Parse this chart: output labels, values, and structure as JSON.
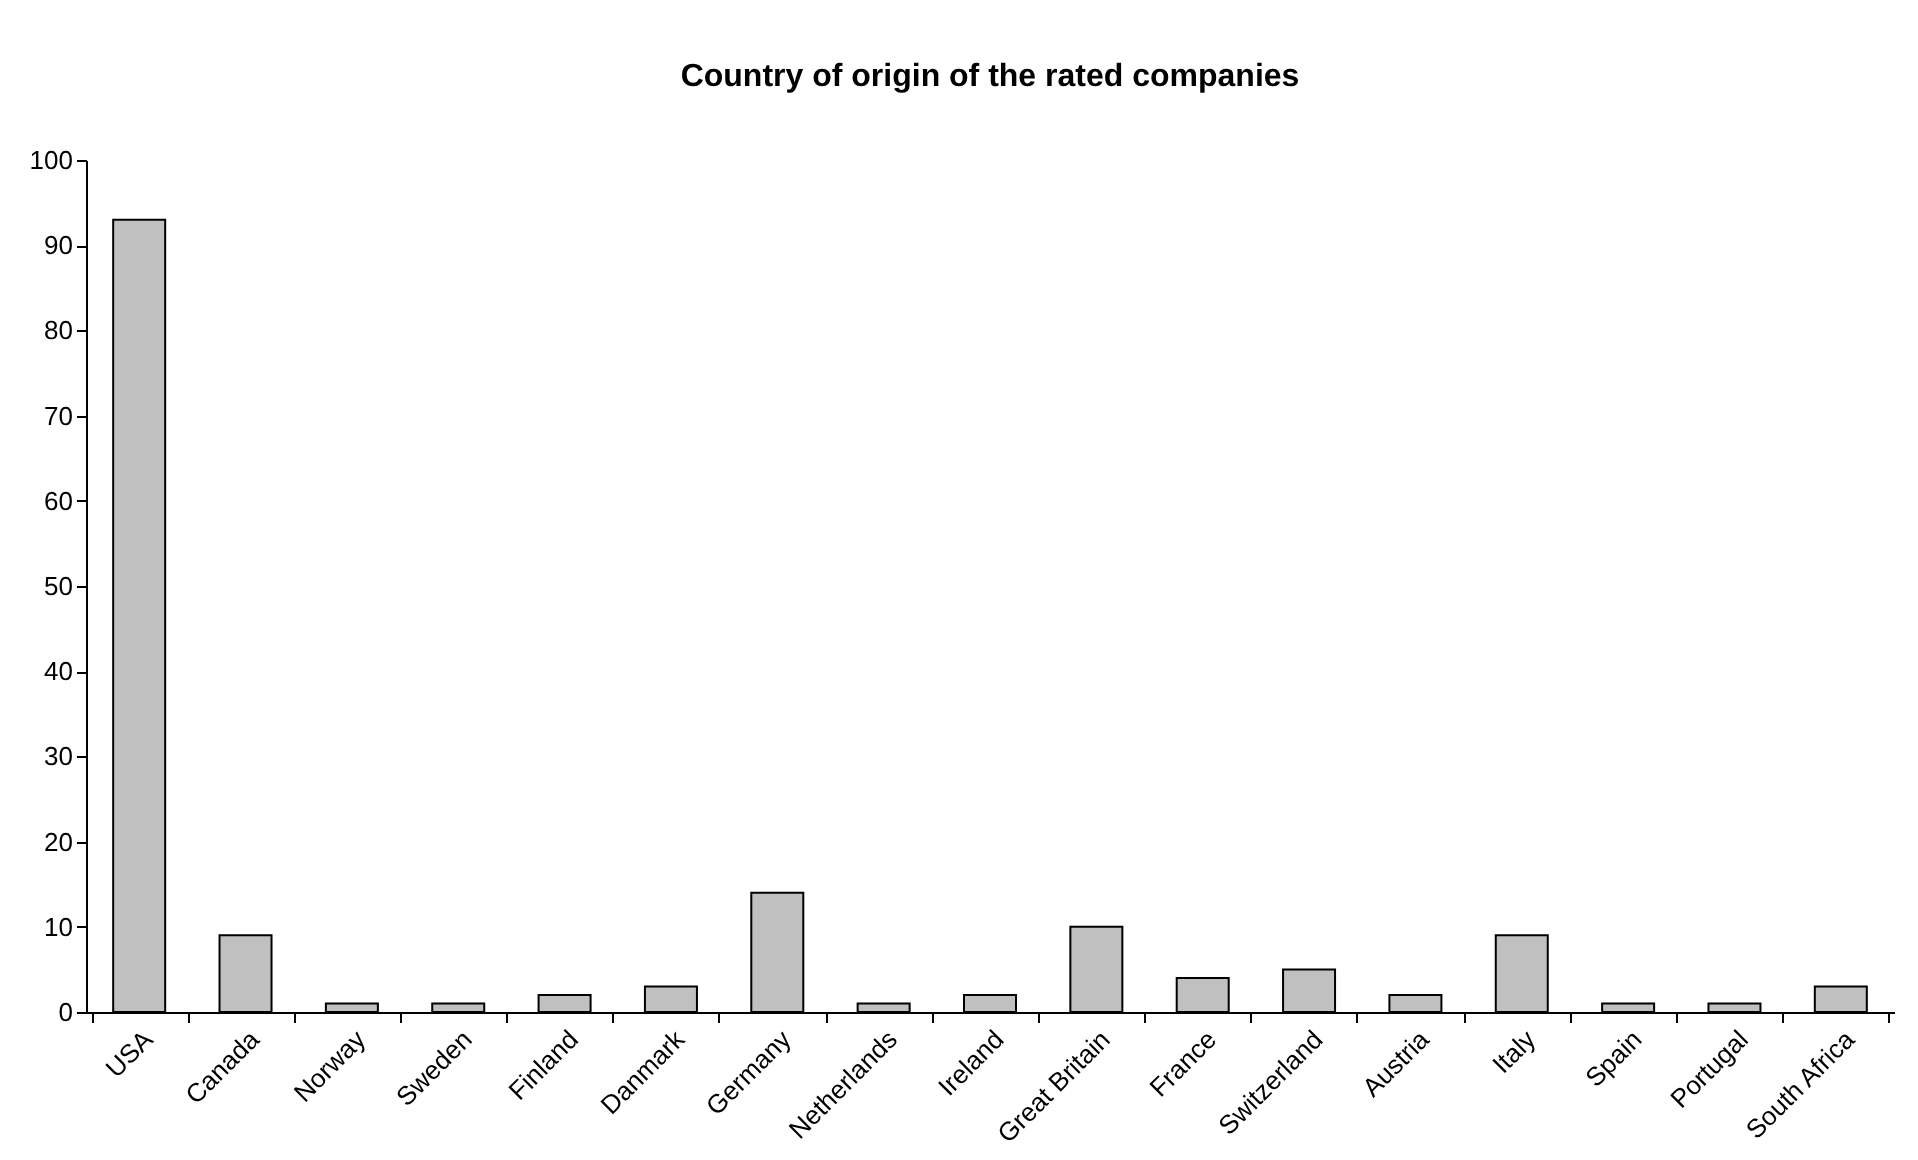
{
  "chart_data": {
    "type": "bar",
    "title": "Country of origin of the rated companies",
    "categories": [
      "USA",
      "Canada",
      "Norway",
      "Sweden",
      "Finland",
      "Danmark",
      "Germany",
      "Netherlands",
      "Ireland",
      "Great Britain",
      "France",
      "Switzerland",
      "Austria",
      "Italy",
      "Spain",
      "Portugal",
      "South Africa"
    ],
    "values": [
      93,
      9,
      1,
      1,
      2,
      3,
      14,
      1,
      2,
      10,
      4,
      5,
      2,
      9,
      1,
      1,
      3
    ],
    "color": "#c0c0c0",
    "ylim": [
      0,
      100
    ],
    "yticks": [
      0,
      10,
      20,
      30,
      40,
      50,
      60,
      70,
      80,
      90,
      100
    ],
    "grid": false
  }
}
